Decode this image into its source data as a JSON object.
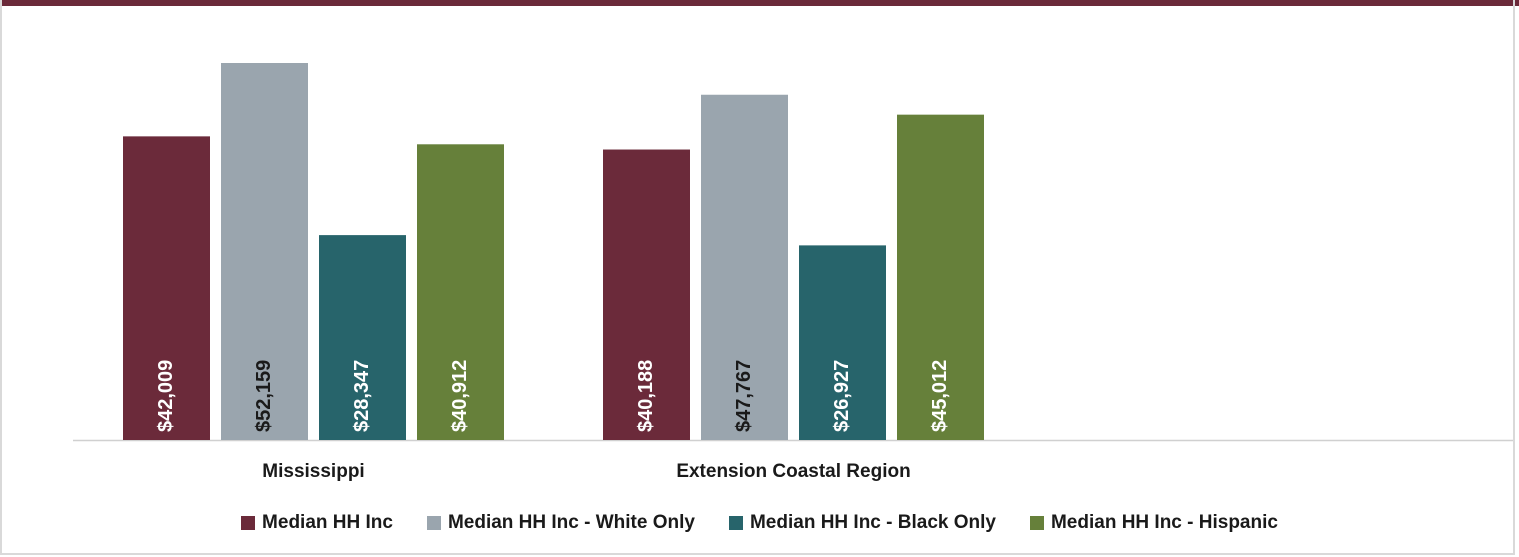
{
  "chart_data": {
    "type": "bar",
    "categories": [
      "Mississippi",
      "Extension Coastal Region"
    ],
    "series": [
      {
        "name": "Median HH Inc",
        "values": [
          42009,
          40188
        ],
        "labels": [
          "$42,009",
          "$40,188"
        ],
        "color": "#6b2a3a",
        "label_color": "#ffffff"
      },
      {
        "name": "Median HH Inc - White Only",
        "values": [
          52159,
          47767
        ],
        "labels": [
          "$52,159",
          "$47,767"
        ],
        "color": "#9aa5ae",
        "label_color": "#1a1a1a"
      },
      {
        "name": "Median HH Inc - Black Only",
        "values": [
          28347,
          26927
        ],
        "labels": [
          "$28,347",
          "$26,927"
        ],
        "color": "#27646b",
        "label_color": "#ffffff"
      },
      {
        "name": "Median HH Inc - Hispanic",
        "values": [
          40912,
          45012
        ],
        "labels": [
          "$40,912",
          "$45,012"
        ],
        "color": "#66803a",
        "label_color": "#ffffff"
      }
    ],
    "title": "",
    "xlabel": "",
    "ylabel": "",
    "ylim": [
      0,
      52159
    ],
    "grid": false,
    "legend_position": "bottom"
  }
}
